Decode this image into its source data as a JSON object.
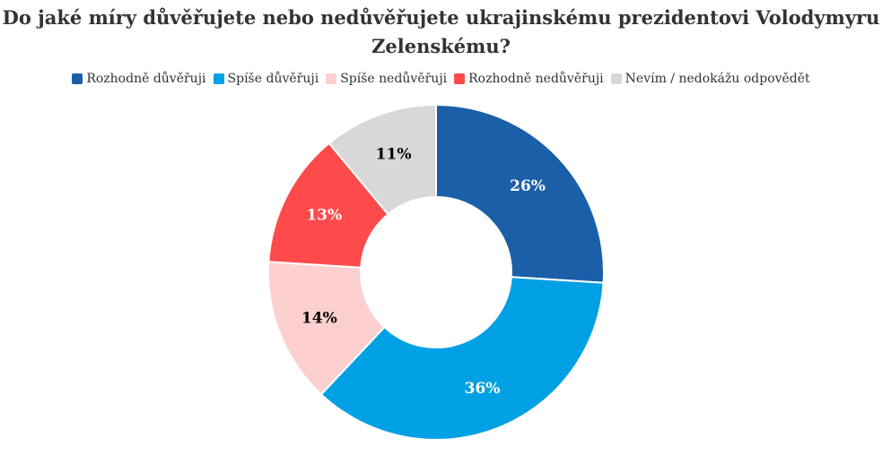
{
  "chart_data": {
    "type": "pie",
    "variant": "donut",
    "title": "Do jaké míry důvěřujete nebo nedůvěřujete ukrajinskému prezidentovi Volodymyru Zelenskému?",
    "legend_position": "top",
    "slices": [
      {
        "name": "Rozhodně důvěřuji",
        "value": 26,
        "label": "26%",
        "color": "#1a5fa8",
        "label_color": "#ffffff"
      },
      {
        "name": "Spíše důvěřuji",
        "value": 36,
        "label": "36%",
        "color": "#00a0e4",
        "label_color": "#ffffff"
      },
      {
        "name": "Spíše nedůvěřuji",
        "value": 14,
        "label": "14%",
        "color": "#fdd0d0",
        "label_color": "#000000"
      },
      {
        "name": "Rozhodně nedůvěřuji",
        "value": 13,
        "label": "13%",
        "color": "#fe4a4a",
        "label_color": "#ffffff"
      },
      {
        "name": "Nevím / nedokážu odpovědět",
        "value": 11,
        "label": "11%",
        "color": "#d8d8d8",
        "label_color": "#000000"
      }
    ]
  }
}
